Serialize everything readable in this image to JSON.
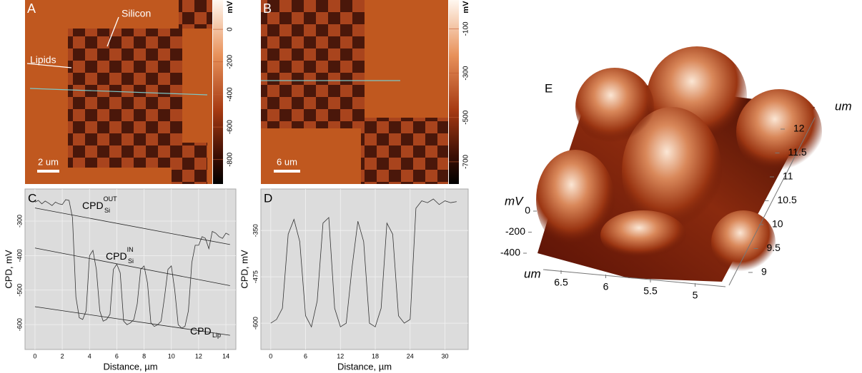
{
  "chart_data": [
    {
      "type": "image",
      "panel_label": "A",
      "colorbar_label": "mV",
      "ylim": [
        -950,
        180
      ],
      "yticks": [
        0,
        -200,
        -400,
        -600,
        -800
      ],
      "scale_bar": "2 um",
      "annotations": [
        "Silicon",
        "Lipids"
      ]
    },
    {
      "type": "image",
      "panel_label": "B",
      "colorbar_label": "mV",
      "ylim": [
        -800,
        30
      ],
      "yticks": [
        -100,
        -300,
        -500,
        -700
      ],
      "scale_bar": "6 um",
      "annotations": []
    },
    {
      "type": "line",
      "panel_label": "C",
      "xlabel": "Distance, µm",
      "ylabel": "CPD, mV",
      "xlim": [
        -0.73,
        14.73
      ],
      "ylim": [
        -672,
        -207
      ],
      "xticks": [
        0,
        2,
        4,
        6,
        8,
        10,
        12,
        14
      ],
      "yticks": [
        -300,
        -400,
        -500,
        -600
      ],
      "grid": true,
      "x": [
        0,
        0.25,
        0.5,
        0.75,
        1,
        1.25,
        1.5,
        1.75,
        2,
        2.25,
        2.5,
        2.75,
        3,
        3.25,
        3.5,
        3.75,
        4,
        4.25,
        4.5,
        4.75,
        5,
        5.25,
        5.5,
        5.75,
        6,
        6.25,
        6.5,
        6.75,
        7,
        7.25,
        7.5,
        7.75,
        8,
        8.25,
        8.5,
        8.75,
        9,
        9.25,
        9.5,
        9.75,
        10,
        10.25,
        10.5,
        10.75,
        11,
        11.25,
        11.5,
        11.75,
        12,
        12.25,
        12.5,
        12.75,
        13,
        13.25,
        13.5,
        13.75,
        14,
        14.25
      ],
      "values": [
        -245,
        -240,
        -250,
        -242,
        -248,
        -255,
        -245,
        -250,
        -252,
        -238,
        -240,
        -290,
        -520,
        -580,
        -585,
        -560,
        -400,
        -385,
        -440,
        -560,
        -590,
        -585,
        -570,
        -440,
        -425,
        -450,
        -590,
        -600,
        -595,
        -585,
        -540,
        -440,
        -430,
        -480,
        -595,
        -605,
        -600,
        -590,
        -520,
        -440,
        -430,
        -500,
        -600,
        -610,
        -605,
        -560,
        -420,
        -370,
        -370,
        -345,
        -350,
        -380,
        -330,
        -335,
        -345,
        -350,
        -335,
        -340
      ],
      "reference_lines": [
        {
          "x": [
            0,
            14.3
          ],
          "values": [
            -262,
            -368
          ],
          "label": "CPD",
          "sub": "Si",
          "sup": "OUT"
        },
        {
          "x": [
            0,
            14.3
          ],
          "values": [
            -378,
            -487
          ],
          "label": "CPD",
          "sub": "Si",
          "sup": "IN"
        },
        {
          "x": [
            0,
            14.3
          ],
          "values": [
            -548,
            -631
          ],
          "label": "CPD",
          "sub": "Lip"
        }
      ]
    },
    {
      "type": "line",
      "panel_label": "D",
      "xlabel": "Distance, µm",
      "ylabel": "CPD, mV",
      "xlim": [
        -1.7,
        34
      ],
      "ylim": [
        -671,
        -238
      ],
      "xticks": [
        0,
        6,
        12,
        18,
        24,
        30
      ],
      "yticks": [
        -350,
        -475,
        -600
      ],
      "grid": true,
      "x": [
        0,
        1,
        2,
        3,
        4,
        5,
        6,
        7,
        8,
        9,
        10,
        11,
        12,
        13,
        14,
        15,
        16,
        17,
        18,
        19,
        20,
        21,
        22,
        23,
        24,
        25,
        26,
        27,
        28,
        29,
        30,
        31,
        32
      ],
      "values": [
        -600,
        -590,
        -560,
        -360,
        -320,
        -380,
        -580,
        -610,
        -540,
        -330,
        -315,
        -560,
        -610,
        -600,
        -450,
        -325,
        -380,
        -600,
        -610,
        -560,
        -330,
        -360,
        -580,
        -600,
        -590,
        -290,
        -270,
        -275,
        -265,
        -280,
        -270,
        -275,
        -272
      ]
    },
    {
      "type": "surface",
      "panel_label": "E",
      "zlabel": "mV",
      "xlabel": "um",
      "ylabel": "um",
      "zticks": [
        0,
        -200,
        -400
      ],
      "xticks": [
        6.5,
        6.0,
        5.5,
        5.0
      ],
      "yticks": [
        9.0,
        9.5,
        10.0,
        10.5,
        11.0,
        11.5,
        12.0
      ]
    }
  ]
}
